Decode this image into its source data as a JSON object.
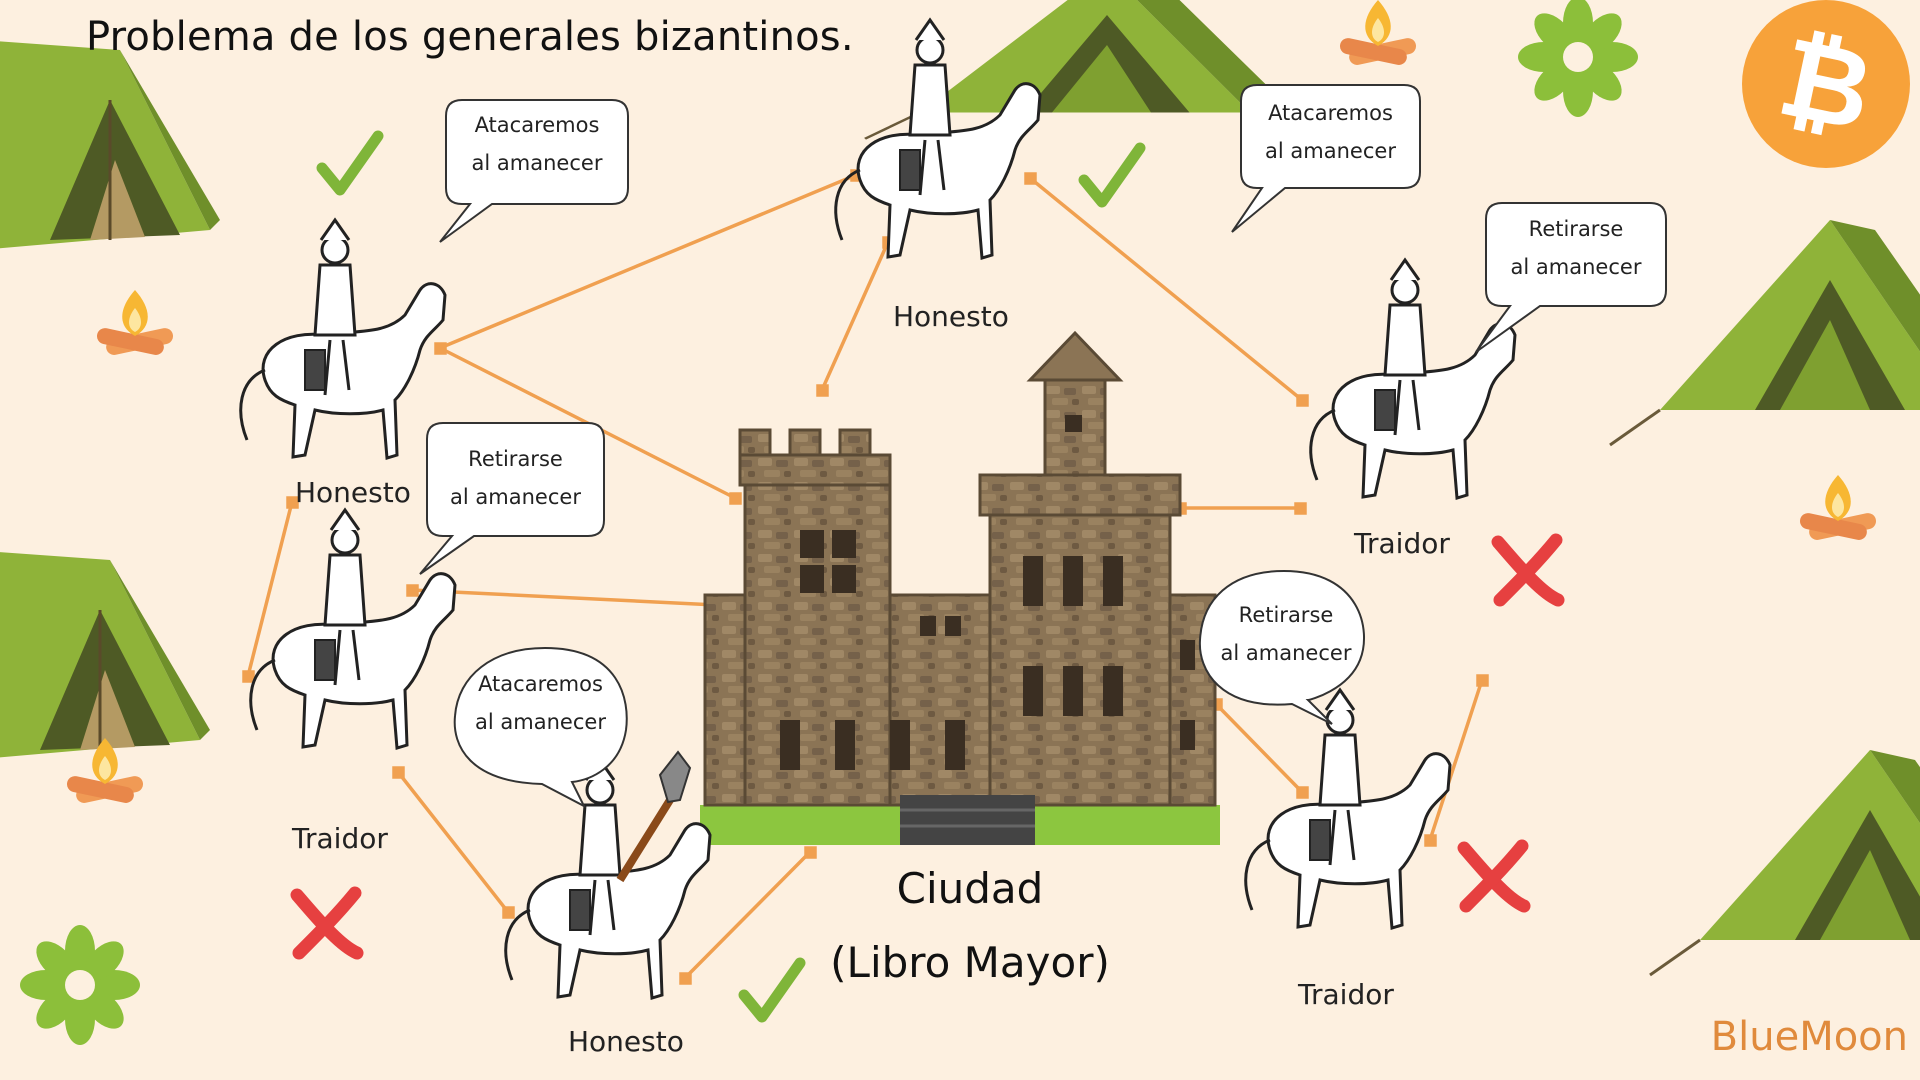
{
  "title": "Problema de los generales bizantinos.",
  "city": {
    "line1": "Ciudad",
    "line2": "(Libro Mayor)"
  },
  "brand": "BlueMoon",
  "logo_icon": "bitcoin-icon",
  "colors": {
    "background": "#fdf0e0",
    "tent_green": "#8fb339",
    "tent_dark": "#4e5a25",
    "castle_stone": "#8b7455",
    "link_orange": "#f0a050",
    "check_green": "#7fb539",
    "cross_red": "#e64040",
    "bitcoin_orange": "#f7a23a",
    "brand_orange": "#e08a3c"
  },
  "generals": [
    {
      "id": "left-top",
      "role": "Honesto",
      "message_line1": "Atacaremos",
      "message_line2": "al amanecer",
      "status": "check"
    },
    {
      "id": "top-center",
      "role": "Honesto",
      "message_line1": "Atacaremos",
      "message_line2": "al amanecer",
      "status": "check"
    },
    {
      "id": "right-top",
      "role": "Traidor",
      "message_line1": "Retirarse",
      "message_line2": "al amanecer",
      "status": "cross"
    },
    {
      "id": "left-middle",
      "role": "Traidor",
      "message_line1": "Retirarse",
      "message_line2": "al amanecer",
      "status": "cross"
    },
    {
      "id": "bottom-center",
      "role": "Honesto",
      "message_line1": "Atacaremos",
      "message_line2": "al amanecer",
      "status": "check"
    },
    {
      "id": "right-bottom",
      "role": "Traidor",
      "message_line1": "Retirarse",
      "message_line2": "al amanecer",
      "status": "cross"
    }
  ]
}
